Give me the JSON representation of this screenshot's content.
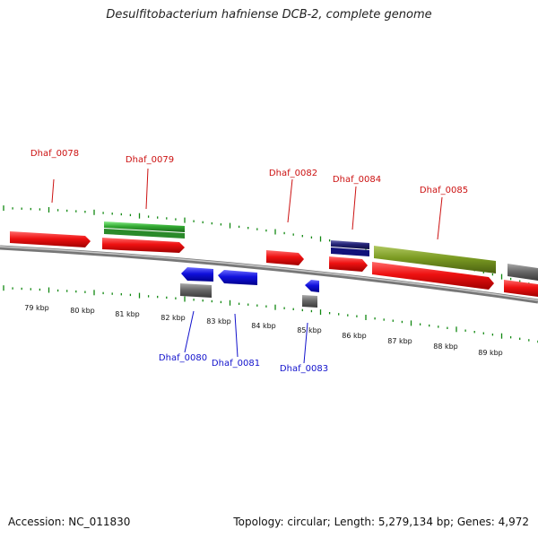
{
  "title": "Desulfitobacterium hafniense DCB-2, complete genome",
  "footer": {
    "accession": "Accession: NC_011830",
    "summary": "Topology: circular; Length: 5,279,134 bp; Genes: 4,972"
  },
  "kbp_labels": [
    "79 kbp",
    "80 kbp",
    "81 kbp",
    "82 kbp",
    "83 kbp",
    "84 kbp",
    "85 kbp",
    "86 kbp",
    "87 kbp",
    "88 kbp",
    "89 kbp"
  ],
  "gene_labels_top": [
    "Dhaf_0078",
    "Dhaf_0079",
    "Dhaf_0082",
    "Dhaf_0084",
    "Dhaf_0085"
  ],
  "gene_labels_bottom": [
    "Dhaf_0080",
    "Dhaf_0081",
    "Dhaf_0083"
  ],
  "colors": {
    "cds": "#ee1111",
    "gene_gray": "#666666",
    "reverse": "#1111dd",
    "green": "#33aa33",
    "olive": "#7a9a22",
    "navy": "#222277",
    "tick_green": "#118811",
    "backbone": "#888888"
  }
}
